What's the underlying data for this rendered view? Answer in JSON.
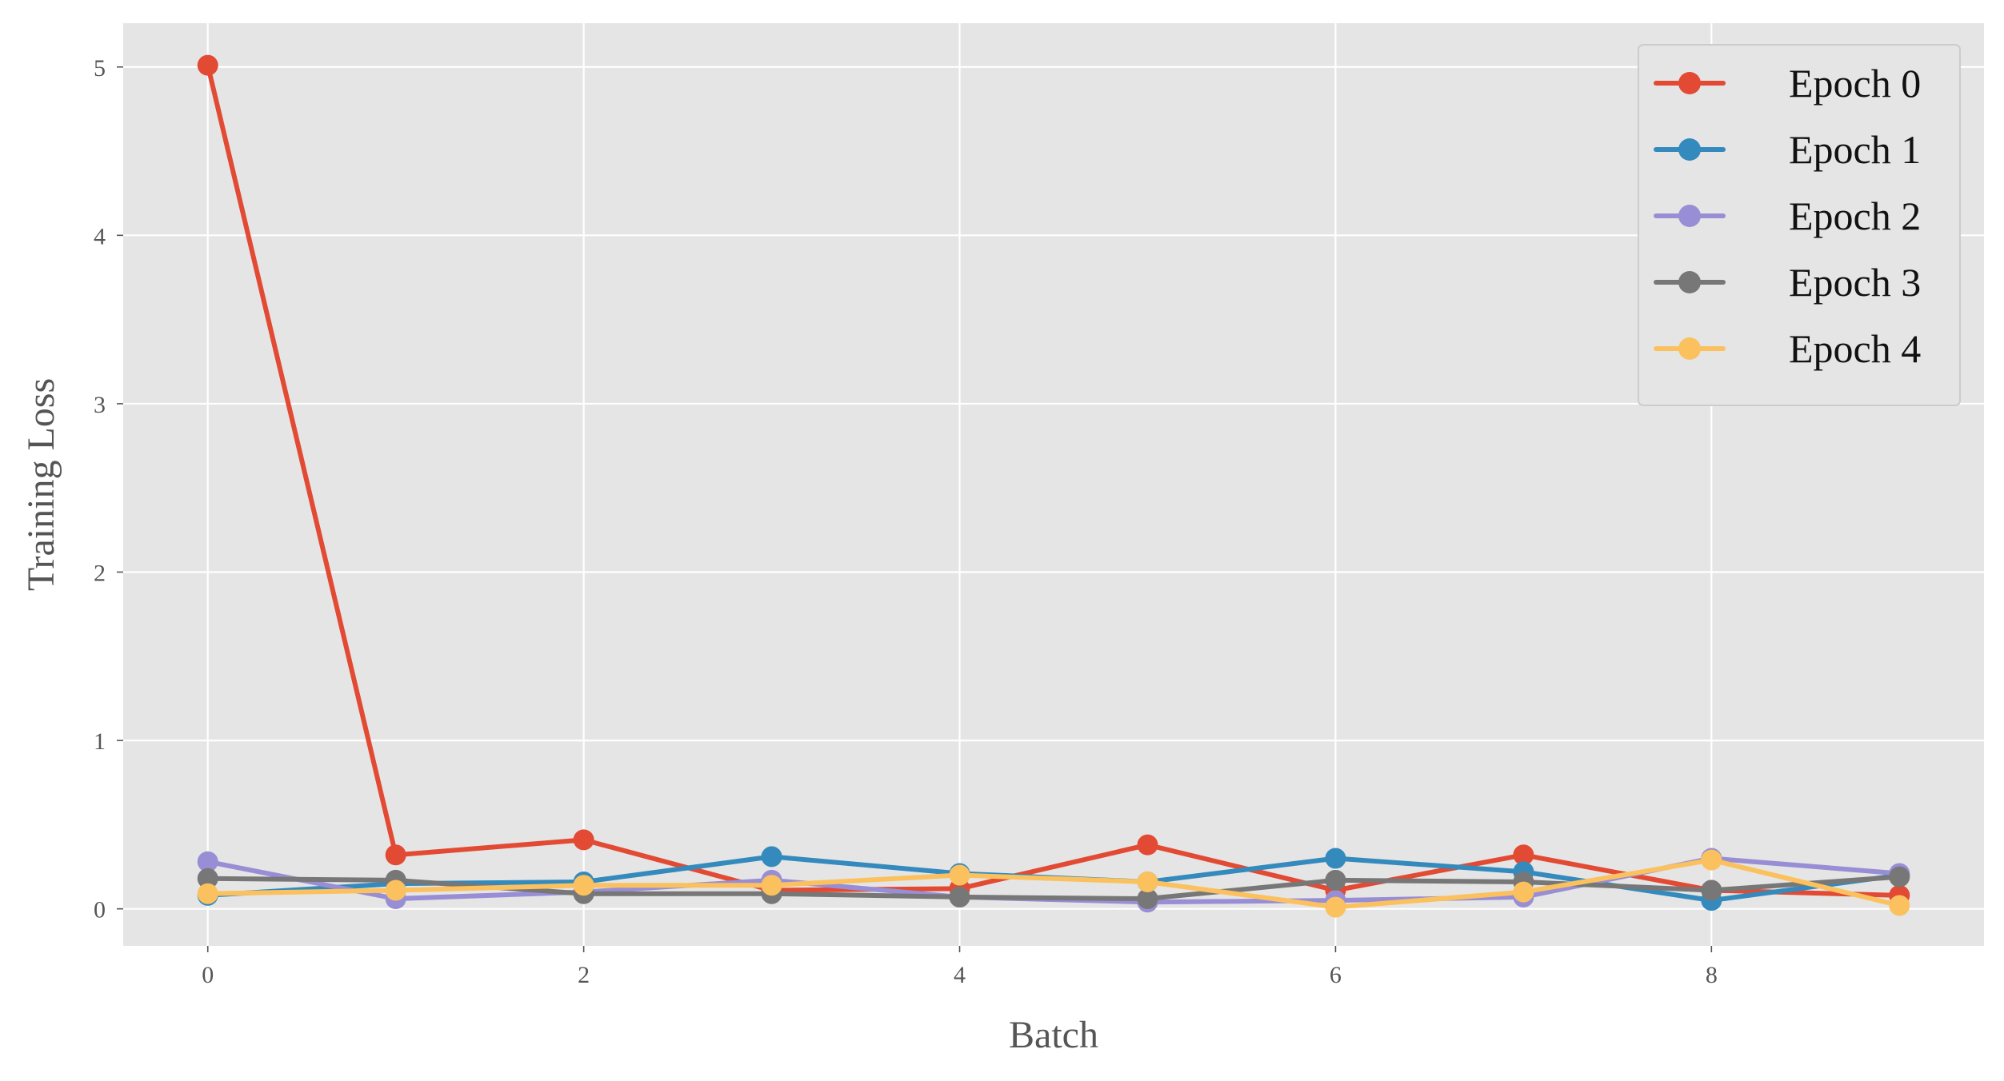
{
  "chart_data": {
    "type": "line",
    "title": "",
    "xlabel": "Batch",
    "ylabel": "Training Loss",
    "x": [
      0,
      1,
      2,
      3,
      4,
      5,
      6,
      7,
      8,
      9
    ],
    "xticks": [
      0,
      2,
      4,
      6,
      8
    ],
    "yticks": [
      0,
      1,
      2,
      3,
      4,
      5
    ],
    "xlim": [
      -0.45,
      9.45
    ],
    "ylim": [
      -0.22,
      5.26
    ],
    "grid": true,
    "legend_position": "top-right",
    "colors": {
      "plot_background": "#e5e5e5",
      "grid": "#ffffff"
    },
    "series": [
      {
        "name": "Epoch 0",
        "color": "#e24a33",
        "values": [
          5.01,
          0.32,
          0.41,
          0.11,
          0.12,
          0.38,
          0.11,
          0.32,
          0.11,
          0.08
        ]
      },
      {
        "name": "Epoch 1",
        "color": "#348abd",
        "values": [
          0.08,
          0.15,
          0.16,
          0.31,
          0.21,
          0.16,
          0.3,
          0.22,
          0.05,
          0.2
        ]
      },
      {
        "name": "Epoch 2",
        "color": "#988ed5",
        "values": [
          0.28,
          0.06,
          0.1,
          0.17,
          0.07,
          0.04,
          0.05,
          0.07,
          0.3,
          0.21
        ]
      },
      {
        "name": "Epoch 3",
        "color": "#777777",
        "values": [
          0.18,
          0.17,
          0.09,
          0.09,
          0.07,
          0.06,
          0.17,
          0.16,
          0.11,
          0.19
        ]
      },
      {
        "name": "Epoch 4",
        "color": "#fbc15e",
        "values": [
          0.09,
          0.11,
          0.14,
          0.14,
          0.2,
          0.16,
          0.01,
          0.1,
          0.29,
          0.02
        ]
      }
    ]
  }
}
